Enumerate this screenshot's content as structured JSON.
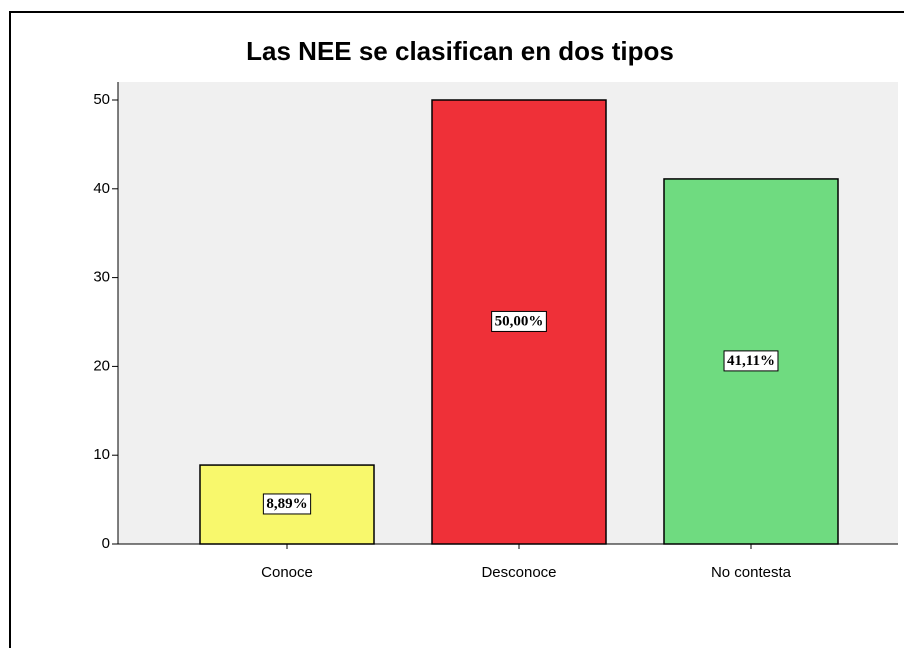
{
  "chart_data": {
    "type": "bar",
    "title": "Las NEE se clasifican en dos tipos",
    "categories": [
      "Conoce",
      "Desconoce",
      "No contesta"
    ],
    "values": [
      8.89,
      50,
      41.11
    ],
    "value_labels": [
      "8,89%",
      "50,00%",
      "41,11%"
    ],
    "colors": [
      "#f8f86c",
      "#ef3038",
      "#6fdb80"
    ],
    "ylim": [
      0,
      50
    ],
    "yticks": [
      0,
      10,
      20,
      30,
      40,
      50
    ],
    "grid": false
  }
}
